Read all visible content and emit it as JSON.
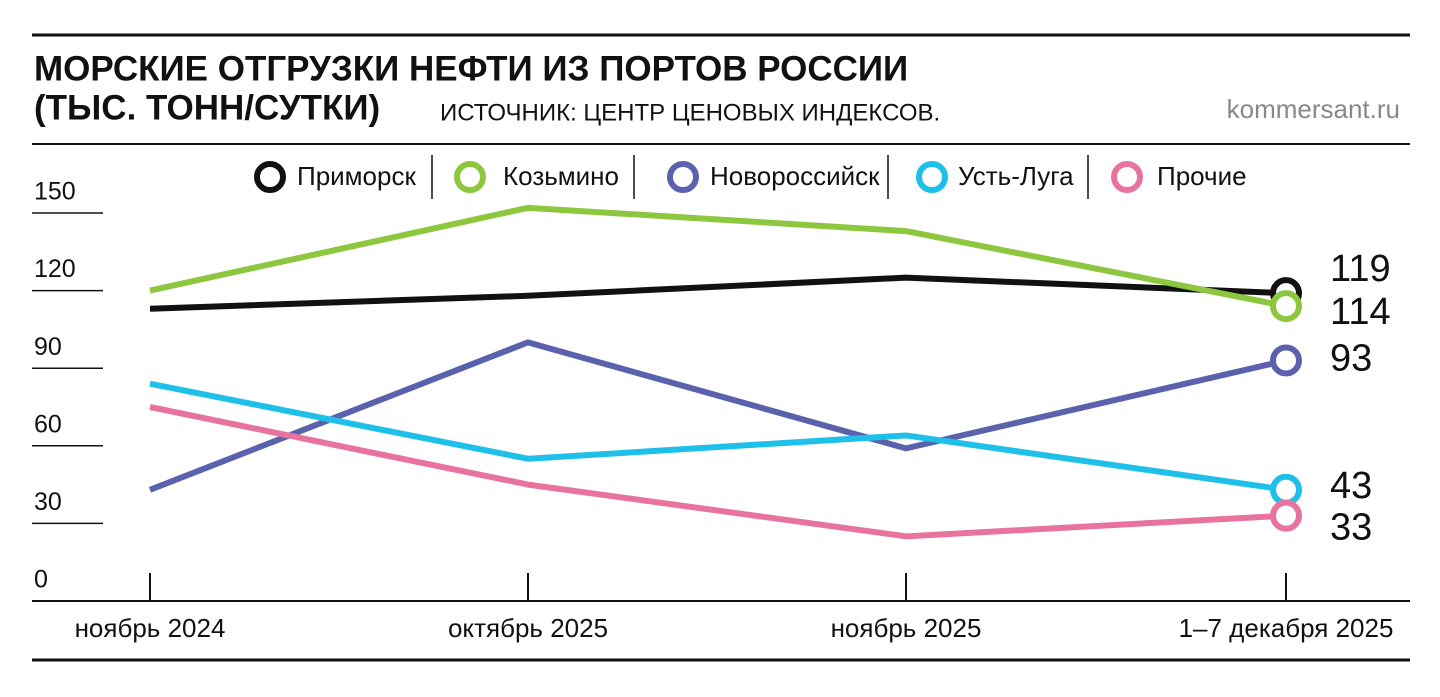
{
  "chart_data": {
    "type": "line",
    "title": "МОРСКИЕ ОТГРУЗКИ НЕФТИ ИЗ ПОРТОВ РОССИИ",
    "subtitle": "(ТЫС. ТОНН/СУТКИ)",
    "source": "ИСТОЧНИК: ЦЕНТР ЦЕНОВЫХ ИНДЕКСОВ.",
    "credit": "kommersant.ru",
    "categories": [
      "ноябрь 2024",
      "октябрь 2025",
      "ноябрь 2025",
      "1–7 декабря 2025"
    ],
    "series": [
      {
        "name": "Приморск",
        "color": "#111111",
        "values": [
          113,
          118,
          125,
          119
        ]
      },
      {
        "name": "Козьмино",
        "color": "#8dc63f",
        "values": [
          120,
          152,
          143,
          114
        ]
      },
      {
        "name": "Новороссийск",
        "color": "#5b62ad",
        "values": [
          43,
          100,
          59,
          93
        ]
      },
      {
        "name": "Усть-Луга",
        "color": "#1ec0ea",
        "values": [
          84,
          55,
          64,
          43
        ]
      },
      {
        "name": "Прочие",
        "color": "#e8739f",
        "values": [
          75,
          45,
          25,
          33
        ]
      }
    ],
    "ylim": [
      0,
      150
    ],
    "yticks": [
      0,
      30,
      60,
      90,
      120,
      150
    ],
    "grid": true
  }
}
